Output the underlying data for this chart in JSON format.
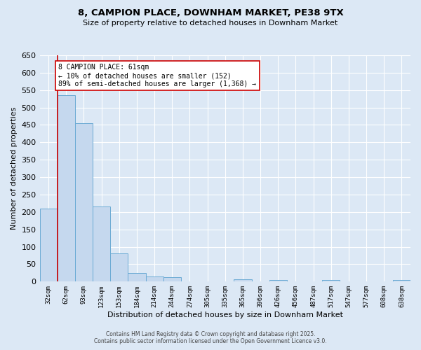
{
  "title1": "8, CAMPION PLACE, DOWNHAM MARKET, PE38 9TX",
  "title2": "Size of property relative to detached houses in Downham Market",
  "xlabel": "Distribution of detached houses by size in Downham Market",
  "ylabel": "Number of detached properties",
  "bin_labels": [
    "32sqm",
    "62sqm",
    "93sqm",
    "123sqm",
    "153sqm",
    "184sqm",
    "214sqm",
    "244sqm",
    "274sqm",
    "305sqm",
    "335sqm",
    "365sqm",
    "396sqm",
    "426sqm",
    "456sqm",
    "487sqm",
    "517sqm",
    "547sqm",
    "577sqm",
    "608sqm",
    "638sqm"
  ],
  "bar_values": [
    210,
    535,
    455,
    215,
    82,
    25,
    15,
    12,
    1,
    0,
    0,
    7,
    0,
    5,
    0,
    0,
    4,
    0,
    0,
    1,
    5
  ],
  "bar_color": "#c5d8ee",
  "bar_edge_color": "#6aaad4",
  "annotation_text": "8 CAMPION PLACE: 61sqm\n← 10% of detached houses are smaller (152)\n89% of semi-detached houses are larger (1,368) →",
  "annotation_box_color": "#ffffff",
  "annotation_box_edge": "#cc0000",
  "annotation_text_color": "#000000",
  "ylim": [
    0,
    650
  ],
  "yticks": [
    0,
    50,
    100,
    150,
    200,
    250,
    300,
    350,
    400,
    450,
    500,
    550,
    600,
    650
  ],
  "footer1": "Contains HM Land Registry data © Crown copyright and database right 2025.",
  "footer2": "Contains public sector information licensed under the Open Government Licence v3.0.",
  "bg_color": "#dce8f5",
  "plot_bg_color": "#dce8f5"
}
